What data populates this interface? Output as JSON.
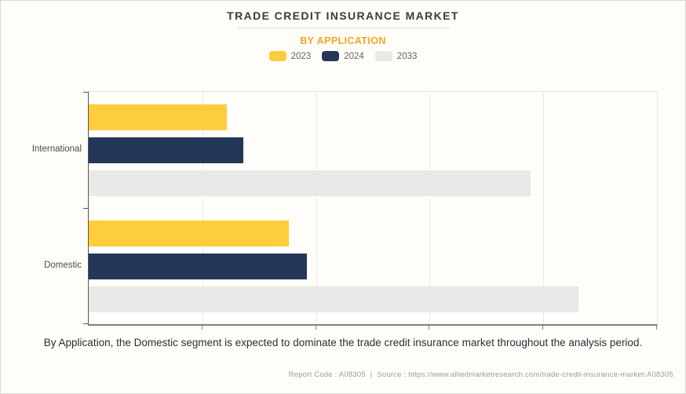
{
  "header": {
    "title": "TRADE CREDIT INSURANCE MARKET",
    "subtitle": "BY APPLICATION"
  },
  "legend": [
    {
      "label": "2023",
      "color": "#FDCD3B"
    },
    {
      "label": "2024",
      "color": "#253758"
    },
    {
      "label": "2033",
      "color": "#E9E9E9"
    }
  ],
  "chart_data": {
    "type": "bar",
    "orientation": "horizontal",
    "title": "TRADE CREDIT INSURANCE MARKET",
    "subtitle": "BY APPLICATION",
    "categories": [
      "International",
      "Domestic"
    ],
    "series": [
      {
        "name": "2023",
        "color": "#FDCD3B",
        "values": [
          24.3,
          35.2
        ]
      },
      {
        "name": "2024",
        "color": "#253758",
        "values": [
          27.2,
          38.4
        ]
      },
      {
        "name": "2033",
        "color": "#E9E9E9",
        "values": [
          77.8,
          86.2
        ]
      }
    ],
    "xlim": [
      0,
      100
    ],
    "gridline_step": 20,
    "x_tick_labels": [],
    "grid": "vertical",
    "legend_position": "top",
    "values_note": "axis shows no numeric labels; values are estimated as percent of full axis width"
  },
  "caption": "By Application, the Domestic segment is expected to dominate the trade credit insurance market throughout the analysis period.",
  "footer": {
    "report_code": "Report Code : A08305",
    "separator": "|",
    "source": "Source : https://www.alliedmarketresearch.com/trade-credit-insurance-market-A08305"
  }
}
